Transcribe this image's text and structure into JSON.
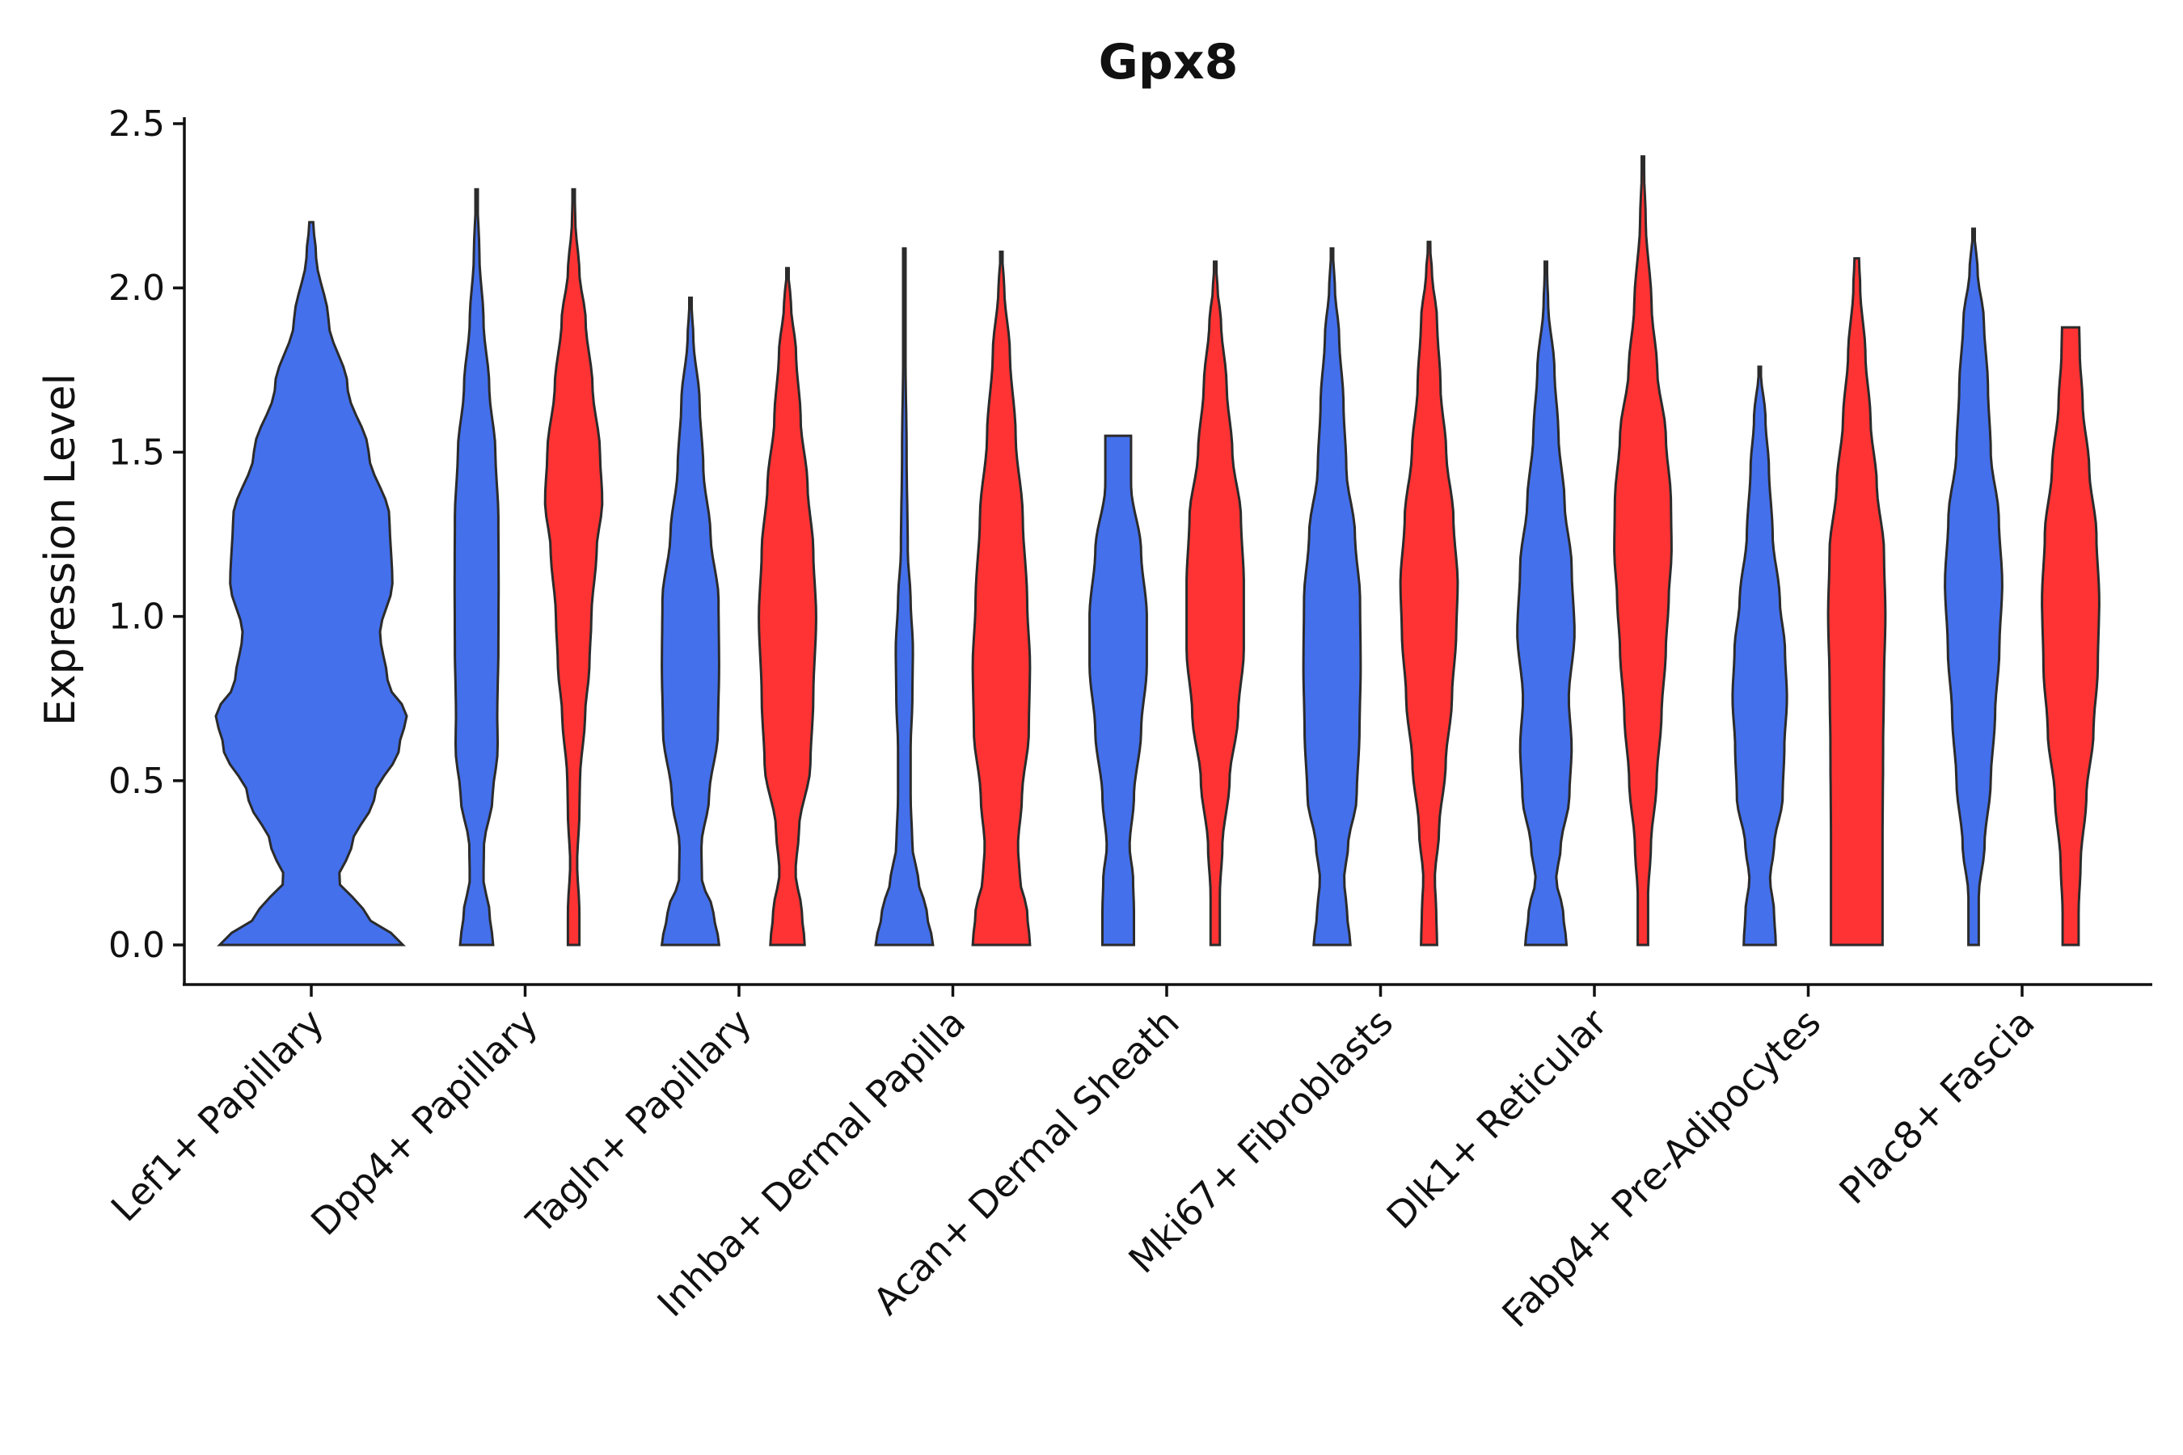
{
  "chart_data": {
    "type": "violin",
    "title": "Gpx8",
    "xlabel": "",
    "ylabel": "Expression Level",
    "ylim": [
      0,
      2.5
    ],
    "yticks": [
      "0.0",
      "0.5",
      "1.0",
      "1.5",
      "2.0",
      "2.5"
    ],
    "grid": false,
    "series_colors": [
      "#4470EC",
      "#FF3333"
    ],
    "categories": [
      "Lef1+ Papillary",
      "Dpp4+ Papillary",
      "Tagln+ Papillary",
      "Inhba+ Dermal Papilla",
      "Acan+ Dermal Sheath",
      "Mki67+ Fibroblasts",
      "Dlk1+ Reticular",
      "Fabp4+ Pre-Adipocytes",
      "Plac8+ Fascia"
    ],
    "violins": [
      {
        "category": 0,
        "group": "blue",
        "max": 2.2,
        "width": 1.0,
        "profile": [
          [
            0,
            0.96
          ],
          [
            0.1,
            0.55
          ],
          [
            0.2,
            0.28
          ],
          [
            0.3,
            0.42
          ],
          [
            0.45,
            0.66
          ],
          [
            0.6,
            0.92
          ],
          [
            0.7,
            1.0
          ],
          [
            0.8,
            0.8
          ],
          [
            0.95,
            0.72
          ],
          [
            1.1,
            0.85
          ],
          [
            1.3,
            0.82
          ],
          [
            1.5,
            0.6
          ],
          [
            1.7,
            0.38
          ],
          [
            1.9,
            0.18
          ],
          [
            2.1,
            0.05
          ],
          [
            2.2,
            0.02
          ]
        ]
      },
      {
        "category": 1,
        "group": "blue",
        "max": 2.3,
        "width": 0.48,
        "profile": [
          [
            0,
            0.72
          ],
          [
            0.1,
            0.56
          ],
          [
            0.2,
            0.3
          ],
          [
            0.3,
            0.32
          ],
          [
            0.45,
            0.7
          ],
          [
            0.6,
            0.92
          ],
          [
            0.7,
            0.9
          ],
          [
            0.9,
            0.95
          ],
          [
            1.1,
            0.96
          ],
          [
            1.3,
            0.95
          ],
          [
            1.5,
            0.82
          ],
          [
            1.7,
            0.55
          ],
          [
            1.9,
            0.3
          ],
          [
            2.1,
            0.12
          ],
          [
            2.3,
            0.02
          ]
        ]
      },
      {
        "category": 1,
        "group": "red",
        "max": 2.3,
        "width": 0.6,
        "profile": [
          [
            0,
            0.2
          ],
          [
            0.1,
            0.2
          ],
          [
            0.25,
            0.12
          ],
          [
            0.4,
            0.2
          ],
          [
            0.5,
            0.22
          ],
          [
            0.7,
            0.4
          ],
          [
            0.85,
            0.55
          ],
          [
            1.0,
            0.62
          ],
          [
            1.2,
            0.8
          ],
          [
            1.35,
            1.0
          ],
          [
            1.5,
            0.92
          ],
          [
            1.7,
            0.66
          ],
          [
            1.9,
            0.42
          ],
          [
            2.05,
            0.2
          ],
          [
            2.2,
            0.06
          ],
          [
            2.3,
            0.02
          ]
        ]
      },
      {
        "category": 2,
        "group": "blue",
        "max": 1.97,
        "width": 0.6,
        "profile": [
          [
            0,
            1.0
          ],
          [
            0.1,
            0.8
          ],
          [
            0.2,
            0.4
          ],
          [
            0.3,
            0.38
          ],
          [
            0.45,
            0.65
          ],
          [
            0.65,
            0.96
          ],
          [
            0.85,
            1.0
          ],
          [
            1.05,
            0.98
          ],
          [
            1.25,
            0.7
          ],
          [
            1.45,
            0.45
          ],
          [
            1.65,
            0.32
          ],
          [
            1.85,
            0.1
          ],
          [
            1.97,
            0.02
          ]
        ]
      },
      {
        "category": 2,
        "group": "red",
        "max": 2.06,
        "width": 0.6,
        "profile": [
          [
            0,
            0.6
          ],
          [
            0.1,
            0.5
          ],
          [
            0.22,
            0.28
          ],
          [
            0.35,
            0.4
          ],
          [
            0.55,
            0.8
          ],
          [
            0.75,
            0.9
          ],
          [
            1.0,
            1.0
          ],
          [
            1.2,
            0.9
          ],
          [
            1.4,
            0.7
          ],
          [
            1.6,
            0.46
          ],
          [
            1.8,
            0.3
          ],
          [
            1.95,
            0.12
          ],
          [
            2.06,
            0.02
          ]
        ]
      },
      {
        "category": 3,
        "group": "blue",
        "max": 2.12,
        "width": 0.6,
        "profile": [
          [
            0,
            1.0
          ],
          [
            0.1,
            0.78
          ],
          [
            0.2,
            0.48
          ],
          [
            0.3,
            0.28
          ],
          [
            0.45,
            0.22
          ],
          [
            0.6,
            0.22
          ],
          [
            0.75,
            0.28
          ],
          [
            0.9,
            0.3
          ],
          [
            1.05,
            0.22
          ],
          [
            1.2,
            0.12
          ],
          [
            1.5,
            0.08
          ],
          [
            1.8,
            0.04
          ],
          [
            2.12,
            0.01
          ]
        ]
      },
      {
        "category": 3,
        "group": "red",
        "max": 2.11,
        "width": 0.6,
        "profile": [
          [
            0,
            1.0
          ],
          [
            0.1,
            0.9
          ],
          [
            0.2,
            0.65
          ],
          [
            0.3,
            0.58
          ],
          [
            0.45,
            0.72
          ],
          [
            0.65,
            0.96
          ],
          [
            0.85,
            1.0
          ],
          [
            1.05,
            0.9
          ],
          [
            1.3,
            0.75
          ],
          [
            1.55,
            0.5
          ],
          [
            1.8,
            0.3
          ],
          [
            2.0,
            0.1
          ],
          [
            2.11,
            0.02
          ]
        ]
      },
      {
        "category": 4,
        "group": "blue",
        "max": 1.55,
        "width": 0.6,
        "profile": [
          [
            0,
            0.55
          ],
          [
            0.1,
            0.55
          ],
          [
            0.2,
            0.52
          ],
          [
            0.3,
            0.4
          ],
          [
            0.45,
            0.55
          ],
          [
            0.65,
            0.8
          ],
          [
            0.85,
            1.0
          ],
          [
            1.0,
            1.0
          ],
          [
            1.2,
            0.8
          ],
          [
            1.4,
            0.45
          ],
          [
            1.55,
            0.45
          ]
        ]
      },
      {
        "category": 4,
        "group": "red",
        "max": 2.08,
        "width": 0.6,
        "profile": [
          [
            0,
            0.16
          ],
          [
            0.15,
            0.16
          ],
          [
            0.3,
            0.25
          ],
          [
            0.5,
            0.5
          ],
          [
            0.7,
            0.8
          ],
          [
            0.9,
            1.0
          ],
          [
            1.1,
            1.0
          ],
          [
            1.3,
            0.9
          ],
          [
            1.5,
            0.6
          ],
          [
            1.7,
            0.4
          ],
          [
            1.9,
            0.2
          ],
          [
            2.0,
            0.08
          ],
          [
            2.08,
            0.02
          ]
        ]
      },
      {
        "category": 5,
        "group": "blue",
        "max": 2.12,
        "width": 0.6,
        "profile": [
          [
            0,
            0.64
          ],
          [
            0.1,
            0.52
          ],
          [
            0.2,
            0.42
          ],
          [
            0.3,
            0.56
          ],
          [
            0.45,
            0.86
          ],
          [
            0.65,
            0.96
          ],
          [
            0.85,
            1.0
          ],
          [
            1.05,
            0.98
          ],
          [
            1.25,
            0.8
          ],
          [
            1.45,
            0.5
          ],
          [
            1.65,
            0.4
          ],
          [
            1.85,
            0.25
          ],
          [
            2.0,
            0.1
          ],
          [
            2.12,
            0.02
          ]
        ]
      },
      {
        "category": 5,
        "group": "red",
        "max": 2.14,
        "width": 0.6,
        "profile": [
          [
            0,
            0.28
          ],
          [
            0.1,
            0.25
          ],
          [
            0.2,
            0.2
          ],
          [
            0.35,
            0.35
          ],
          [
            0.55,
            0.58
          ],
          [
            0.75,
            0.8
          ],
          [
            0.95,
            0.95
          ],
          [
            1.1,
            1.0
          ],
          [
            1.3,
            0.85
          ],
          [
            1.5,
            0.6
          ],
          [
            1.7,
            0.4
          ],
          [
            1.9,
            0.28
          ],
          [
            2.05,
            0.1
          ],
          [
            2.14,
            0.02
          ]
        ]
      },
      {
        "category": 6,
        "group": "blue",
        "max": 2.08,
        "width": 0.6,
        "profile": [
          [
            0,
            0.72
          ],
          [
            0.1,
            0.6
          ],
          [
            0.2,
            0.36
          ],
          [
            0.3,
            0.52
          ],
          [
            0.45,
            0.82
          ],
          [
            0.6,
            0.9
          ],
          [
            0.75,
            0.8
          ],
          [
            0.95,
            1.0
          ],
          [
            1.15,
            0.9
          ],
          [
            1.35,
            0.65
          ],
          [
            1.55,
            0.44
          ],
          [
            1.75,
            0.3
          ],
          [
            1.95,
            0.08
          ],
          [
            2.08,
            0.02
          ]
        ]
      },
      {
        "category": 6,
        "group": "red",
        "max": 2.4,
        "width": 0.6,
        "profile": [
          [
            0,
            0.18
          ],
          [
            0.15,
            0.18
          ],
          [
            0.3,
            0.28
          ],
          [
            0.5,
            0.48
          ],
          [
            0.7,
            0.65
          ],
          [
            0.9,
            0.8
          ],
          [
            1.05,
            0.9
          ],
          [
            1.2,
            1.0
          ],
          [
            1.35,
            0.98
          ],
          [
            1.55,
            0.8
          ],
          [
            1.75,
            0.5
          ],
          [
            1.95,
            0.3
          ],
          [
            2.2,
            0.1
          ],
          [
            2.4,
            0.02
          ]
        ]
      },
      {
        "category": 7,
        "group": "blue",
        "max": 1.76,
        "width": 0.6,
        "profile": [
          [
            0,
            0.56
          ],
          [
            0.1,
            0.5
          ],
          [
            0.2,
            0.36
          ],
          [
            0.3,
            0.5
          ],
          [
            0.45,
            0.8
          ],
          [
            0.6,
            0.86
          ],
          [
            0.75,
            0.95
          ],
          [
            0.9,
            0.88
          ],
          [
            1.05,
            0.7
          ],
          [
            1.25,
            0.45
          ],
          [
            1.45,
            0.32
          ],
          [
            1.6,
            0.2
          ],
          [
            1.76,
            0.02
          ]
        ]
      },
      {
        "category": 7,
        "group": "red",
        "max": 2.09,
        "width": 0.6,
        "profile": [
          [
            0,
            0.9
          ],
          [
            0.3,
            0.9
          ],
          [
            0.6,
            0.92
          ],
          [
            0.8,
            0.95
          ],
          [
            1.0,
            1.0
          ],
          [
            1.2,
            0.95
          ],
          [
            1.4,
            0.7
          ],
          [
            1.6,
            0.48
          ],
          [
            1.8,
            0.3
          ],
          [
            2.0,
            0.12
          ],
          [
            2.09,
            0.08
          ]
        ]
      },
      {
        "category": 8,
        "group": "blue",
        "max": 2.18,
        "width": 0.6,
        "profile": [
          [
            0,
            0.18
          ],
          [
            0.15,
            0.18
          ],
          [
            0.3,
            0.38
          ],
          [
            0.5,
            0.6
          ],
          [
            0.7,
            0.75
          ],
          [
            0.9,
            0.9
          ],
          [
            1.1,
            1.0
          ],
          [
            1.3,
            0.88
          ],
          [
            1.5,
            0.6
          ],
          [
            1.7,
            0.5
          ],
          [
            1.9,
            0.36
          ],
          [
            2.05,
            0.14
          ],
          [
            2.18,
            0.02
          ]
        ]
      },
      {
        "category": 8,
        "group": "red",
        "max": 1.88,
        "width": 0.6,
        "profile": [
          [
            0,
            0.28
          ],
          [
            0.1,
            0.28
          ],
          [
            0.25,
            0.35
          ],
          [
            0.45,
            0.55
          ],
          [
            0.65,
            0.8
          ],
          [
            0.85,
            0.95
          ],
          [
            1.05,
            1.0
          ],
          [
            1.25,
            0.9
          ],
          [
            1.45,
            0.65
          ],
          [
            1.65,
            0.42
          ],
          [
            1.8,
            0.32
          ],
          [
            1.88,
            0.3
          ]
        ]
      }
    ]
  }
}
